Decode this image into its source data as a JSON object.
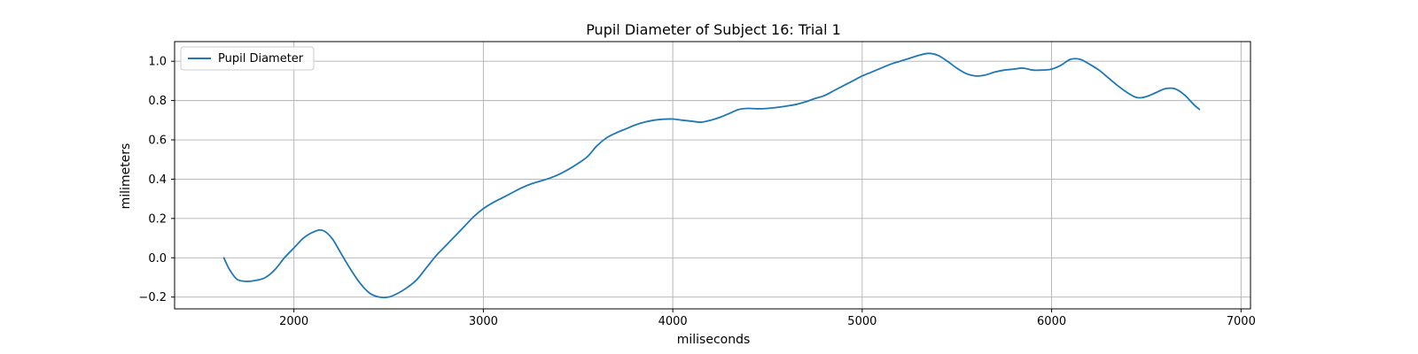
{
  "chart_data": {
    "type": "line",
    "title": "Pupil Diameter of Subject 16: Trial 1",
    "xlabel": "miliseconds",
    "ylabel": "milimeters",
    "xlim": [
      1370,
      7050
    ],
    "ylim": [
      -0.26,
      1.1
    ],
    "xticks": [
      2000,
      3000,
      4000,
      5000,
      6000,
      7000
    ],
    "yticks": [
      -0.2,
      0.0,
      0.2,
      0.4,
      0.6,
      0.8,
      1.0
    ],
    "ytick_labels": [
      "−0.2",
      "0.0",
      "0.2",
      "0.4",
      "0.6",
      "0.8",
      "1.0"
    ],
    "grid": true,
    "legend": {
      "position": "top-left",
      "entries": [
        "Pupil Diameter"
      ]
    },
    "series": [
      {
        "name": "Pupil Diameter",
        "color": "#1f77b4",
        "x": [
          1630,
          1660,
          1700,
          1750,
          1800,
          1850,
          1900,
          1950,
          2000,
          2050,
          2100,
          2150,
          2200,
          2250,
          2300,
          2350,
          2400,
          2450,
          2500,
          2550,
          2600,
          2650,
          2700,
          2750,
          2800,
          2850,
          2900,
          2950,
          3000,
          3050,
          3100,
          3150,
          3200,
          3250,
          3300,
          3350,
          3400,
          3450,
          3500,
          3550,
          3600,
          3650,
          3700,
          3750,
          3800,
          3850,
          3900,
          3950,
          4000,
          4050,
          4100,
          4150,
          4200,
          4250,
          4300,
          4350,
          4400,
          4450,
          4500,
          4550,
          4600,
          4650,
          4700,
          4750,
          4800,
          4850,
          4900,
          4950,
          5000,
          5050,
          5100,
          5150,
          5200,
          5250,
          5300,
          5350,
          5400,
          5450,
          5500,
          5550,
          5600,
          5650,
          5700,
          5750,
          5800,
          5850,
          5900,
          5950,
          6000,
          6050,
          6100,
          6150,
          6200,
          6250,
          6300,
          6350,
          6400,
          6450,
          6500,
          6550,
          6600,
          6650,
          6700,
          6750,
          6780
        ],
        "y": [
          0.0,
          -0.06,
          -0.11,
          -0.12,
          -0.115,
          -0.1,
          -0.06,
          0.0,
          0.05,
          0.1,
          0.13,
          0.14,
          0.1,
          0.02,
          -0.06,
          -0.13,
          -0.18,
          -0.2,
          -0.2,
          -0.18,
          -0.15,
          -0.11,
          -0.05,
          0.01,
          0.06,
          0.11,
          0.16,
          0.21,
          0.25,
          0.28,
          0.305,
          0.33,
          0.355,
          0.375,
          0.39,
          0.405,
          0.425,
          0.45,
          0.48,
          0.515,
          0.57,
          0.61,
          0.635,
          0.655,
          0.675,
          0.69,
          0.7,
          0.705,
          0.706,
          0.7,
          0.695,
          0.69,
          0.7,
          0.715,
          0.735,
          0.755,
          0.76,
          0.758,
          0.76,
          0.765,
          0.772,
          0.78,
          0.793,
          0.81,
          0.825,
          0.85,
          0.875,
          0.9,
          0.925,
          0.945,
          0.965,
          0.985,
          1.0,
          1.015,
          1.03,
          1.04,
          1.03,
          1.0,
          0.965,
          0.937,
          0.925,
          0.93,
          0.945,
          0.955,
          0.96,
          0.965,
          0.955,
          0.955,
          0.96,
          0.98,
          1.01,
          1.01,
          0.985,
          0.955,
          0.915,
          0.875,
          0.84,
          0.815,
          0.82,
          0.84,
          0.86,
          0.86,
          0.83,
          0.78,
          0.755
        ]
      }
    ]
  }
}
